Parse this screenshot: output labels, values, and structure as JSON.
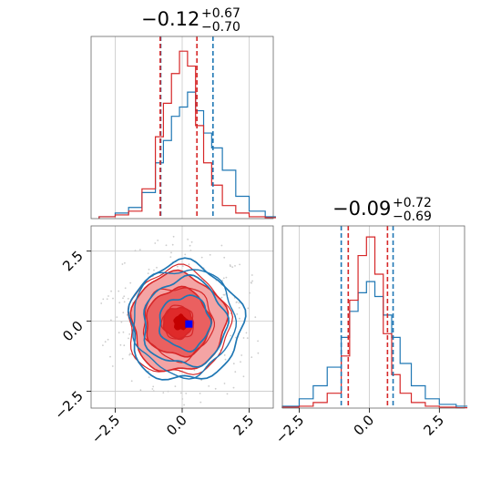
{
  "chart_data": {
    "type": "corner",
    "parameters": [
      "",
      ""
    ],
    "colors": {
      "series_a": "#1f77b4",
      "series_b": "#d62728",
      "truth_marker": "#0000ff",
      "scatter": "#cccccc",
      "grid": "#c8c8c8"
    },
    "panels": [
      {
        "id": "hist-top",
        "type": "histogram",
        "title": {
          "median": "−0.12",
          "plus": "+0.67",
          "minus": "−0.70"
        },
        "xlim": [
          -3.4,
          3.4
        ],
        "gridlines_x": [
          -2.5,
          0.0,
          2.5
        ],
        "quantile_lines": {
          "series_a": [
            -0.8,
            1.15
          ],
          "series_b": [
            -0.82,
            0.55
          ]
        },
        "series": [
          {
            "color": "#1f77b4",
            "bins": [
              -3.1,
              -2.5,
              -2.0,
              -1.5,
              -1.0,
              -0.7,
              -0.4,
              -0.1,
              0.2,
              0.5,
              0.8,
              1.1,
              1.5,
              2.0,
              2.5,
              3.1
            ],
            "values": [
              0.01,
              0.03,
              0.06,
              0.14,
              0.3,
              0.42,
              0.55,
              0.6,
              0.68,
              0.58,
              0.46,
              0.38,
              0.26,
              0.12,
              0.04,
              0.01
            ]
          },
          {
            "color": "#d62728",
            "bins": [
              -3.1,
              -2.5,
              -2.0,
              -1.5,
              -1.0,
              -0.7,
              -0.4,
              -0.1,
              0.2,
              0.5,
              0.8,
              1.1,
              1.5,
              2.0,
              2.5,
              3.1
            ],
            "values": [
              0.01,
              0.02,
              0.04,
              0.16,
              0.44,
              0.62,
              0.78,
              0.9,
              0.82,
              0.5,
              0.3,
              0.18,
              0.07,
              0.03,
              0.01,
              0.005
            ]
          }
        ]
      },
      {
        "id": "contour-main",
        "type": "2d-contour",
        "xlim": [
          -3.4,
          3.4
        ],
        "ylim": [
          -3.1,
          3.4
        ],
        "gridlines_x": [
          -2.5,
          0.0,
          2.5
        ],
        "gridlines_y": [
          -2.5,
          0.0,
          2.5
        ],
        "xticks": [
          "−2.5",
          "0.0",
          "2.5"
        ],
        "yticks": [
          "2.5",
          "0.0",
          "−2.5"
        ],
        "series_a_levels_radius": [
          2.1,
          1.55,
          0.95
        ],
        "series_b_levels_radius": [
          1.75,
          1.2,
          0.55
        ],
        "series_b_center": [
          -0.15,
          -0.05
        ],
        "series_a_center": [
          0.1,
          -0.05
        ],
        "truth_marker": {
          "x": 0.25,
          "y": -0.1
        }
      },
      {
        "id": "hist-right",
        "type": "histogram",
        "title": {
          "median": "−0.09",
          "plus": "+0.72",
          "minus": "−0.69"
        },
        "xlim": [
          -3.1,
          3.4
        ],
        "gridlines_x": [
          -2.5,
          0.0,
          2.5
        ],
        "xticks": [
          "−2.5",
          "0.0",
          "2.5"
        ],
        "quantile_lines": {
          "series_a": [
            -1.0,
            0.85
          ],
          "series_b": [
            -0.75,
            0.65
          ]
        },
        "series": [
          {
            "color": "#1f77b4",
            "bins": [
              -3.1,
              -2.5,
              -2.0,
              -1.5,
              -1.0,
              -0.7,
              -0.4,
              -0.1,
              0.2,
              0.5,
              0.8,
              1.1,
              1.5,
              2.0,
              2.5,
              3.1
            ],
            "values": [
              0.01,
              0.05,
              0.12,
              0.22,
              0.38,
              0.52,
              0.62,
              0.68,
              0.6,
              0.5,
              0.38,
              0.24,
              0.12,
              0.05,
              0.02,
              0.01
            ]
          },
          {
            "color": "#d62728",
            "bins": [
              -3.1,
              -2.5,
              -2.0,
              -1.5,
              -1.0,
              -0.7,
              -0.4,
              -0.1,
              0.2,
              0.5,
              0.8,
              1.1,
              1.5,
              2.0,
              2.5,
              3.1
            ],
            "values": [
              0.005,
              0.01,
              0.03,
              0.08,
              0.28,
              0.58,
              0.82,
              0.92,
              0.72,
              0.4,
              0.18,
              0.08,
              0.03,
              0.01,
              0.005,
              0.002
            ]
          }
        ]
      }
    ]
  }
}
